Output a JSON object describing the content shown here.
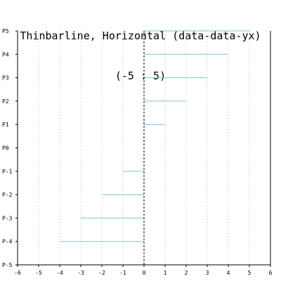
{
  "chart_data": {
    "type": "bar",
    "orientation": "horizontal",
    "title": [
      "Thinbarline, Horizontal (data-data-yx)",
      "(-5 : 5)"
    ],
    "xlabel": "",
    "ylabel": "",
    "categories": [
      "P-5",
      "P-4",
      "P-3",
      "P-2",
      "P-1",
      "P0",
      "P1",
      "P2",
      "P3",
      "P4",
      "P5"
    ],
    "values": [
      -5,
      -4,
      -3,
      -2,
      -1,
      0,
      1,
      2,
      3,
      4,
      5
    ],
    "xlim": [
      -6,
      6
    ],
    "xticks": [
      "-6",
      "-5",
      "-4",
      "-3",
      "-2",
      "-1",
      "0",
      "1",
      "2",
      "3",
      "4",
      "5",
      "6"
    ],
    "grid": "vertical-dotted",
    "bar_color": "#7ec3d8",
    "zero_line_color": "#000000"
  }
}
